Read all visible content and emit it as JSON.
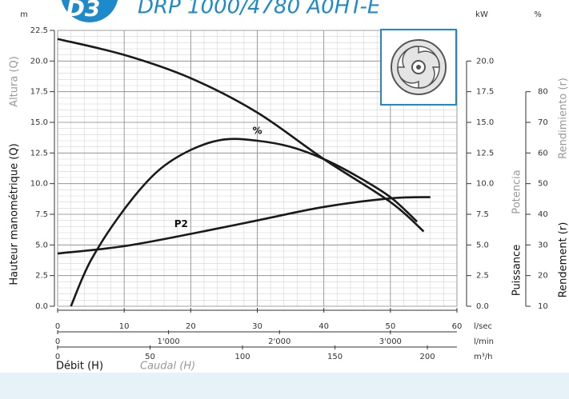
{
  "chart_data": {
    "type": "line",
    "badge": "D3",
    "title": "DRP 1000/4780 A0HT-E",
    "y_unit": "m",
    "y2_unit": "kW",
    "y3_unit": "%",
    "y_title": "Hauteur manométrique (Q)",
    "y_title_alt": "Altura (Q)",
    "y2_title": "Puissance",
    "y2_title_alt": "Potencia",
    "y3_title": "Rendement (r)",
    "y3_title_alt": "Rendimiento (r)",
    "x_title": "Débit (H)",
    "x_title_alt": "Caudal (H)",
    "grid": true,
    "xlim": [
      0,
      60
    ],
    "xticks": [
      0,
      10,
      20,
      30,
      40,
      50,
      60
    ],
    "x_unit": "l/sec",
    "x2lim": [
      0,
      3600
    ],
    "x2ticks": [
      0,
      {
        "value": 1000,
        "label": "1'000"
      },
      {
        "value": 2000,
        "label": "2'000"
      },
      {
        "value": 3000,
        "label": "3'000"
      }
    ],
    "x2_unit": "l/min",
    "x3lim": [
      0,
      216
    ],
    "x3ticks": [
      0,
      50,
      100,
      150,
      200
    ],
    "x3_unit": "m³/h",
    "ylim": [
      0,
      22.5
    ],
    "yticks": [
      {
        "value": 0,
        "label": "0.0"
      },
      {
        "value": 2.5,
        "label": "2.5"
      },
      {
        "value": 5,
        "label": "5.0"
      },
      {
        "value": 7.5,
        "label": "7.5"
      },
      {
        "value": 10,
        "label": "10.0"
      },
      {
        "value": 12.5,
        "label": "12.5"
      },
      {
        "value": 15,
        "label": "15.0"
      },
      {
        "value": 17.5,
        "label": "17.5"
      },
      {
        "value": 20,
        "label": "20.0"
      },
      {
        "value": 22.5,
        "label": "22.5"
      }
    ],
    "y2lim": [
      0,
      22.5
    ],
    "y2ticks": [
      {
        "value": 0,
        "label": "0.0"
      },
      {
        "value": 2.5,
        "label": "2.5"
      },
      {
        "value": 5,
        "label": "5.0"
      },
      {
        "value": 7.5,
        "label": "7.5"
      },
      {
        "value": 10,
        "label": "10.0"
      },
      {
        "value": 12.5,
        "label": "12.5"
      },
      {
        "value": 15,
        "label": "15.0"
      },
      {
        "value": 17.5,
        "label": "17.5"
      },
      {
        "value": 20,
        "label": "20.0"
      }
    ],
    "y3lim": [
      10,
      100
    ],
    "y3ticks": [
      10,
      20,
      30,
      40,
      50,
      60,
      70,
      80
    ],
    "series": [
      {
        "color": "#1a1a1a",
        "axis": "y",
        "x": [
          0,
          10,
          20,
          30,
          40,
          50,
          55
        ],
        "values": [
          21.8,
          20.5,
          18.6,
          15.8,
          12.0,
          8.5,
          6.1
        ]
      },
      {
        "name": "%",
        "color": "#1a1a1a",
        "axis": "y3",
        "x": [
          2,
          5,
          10,
          15,
          20,
          25,
          30,
          35,
          40,
          45,
          50,
          54
        ],
        "values": [
          10,
          25,
          41.6,
          54,
          61,
          64.4,
          64,
          62,
          58,
          52.4,
          45.6,
          37.6
        ]
      },
      {
        "name": "P2",
        "color": "#1a1a1a",
        "axis": "y2",
        "x": [
          0,
          10,
          20,
          30,
          40,
          50,
          56
        ],
        "values": [
          4.3,
          4.9,
          5.9,
          7.0,
          8.1,
          8.8,
          8.9
        ]
      }
    ]
  }
}
